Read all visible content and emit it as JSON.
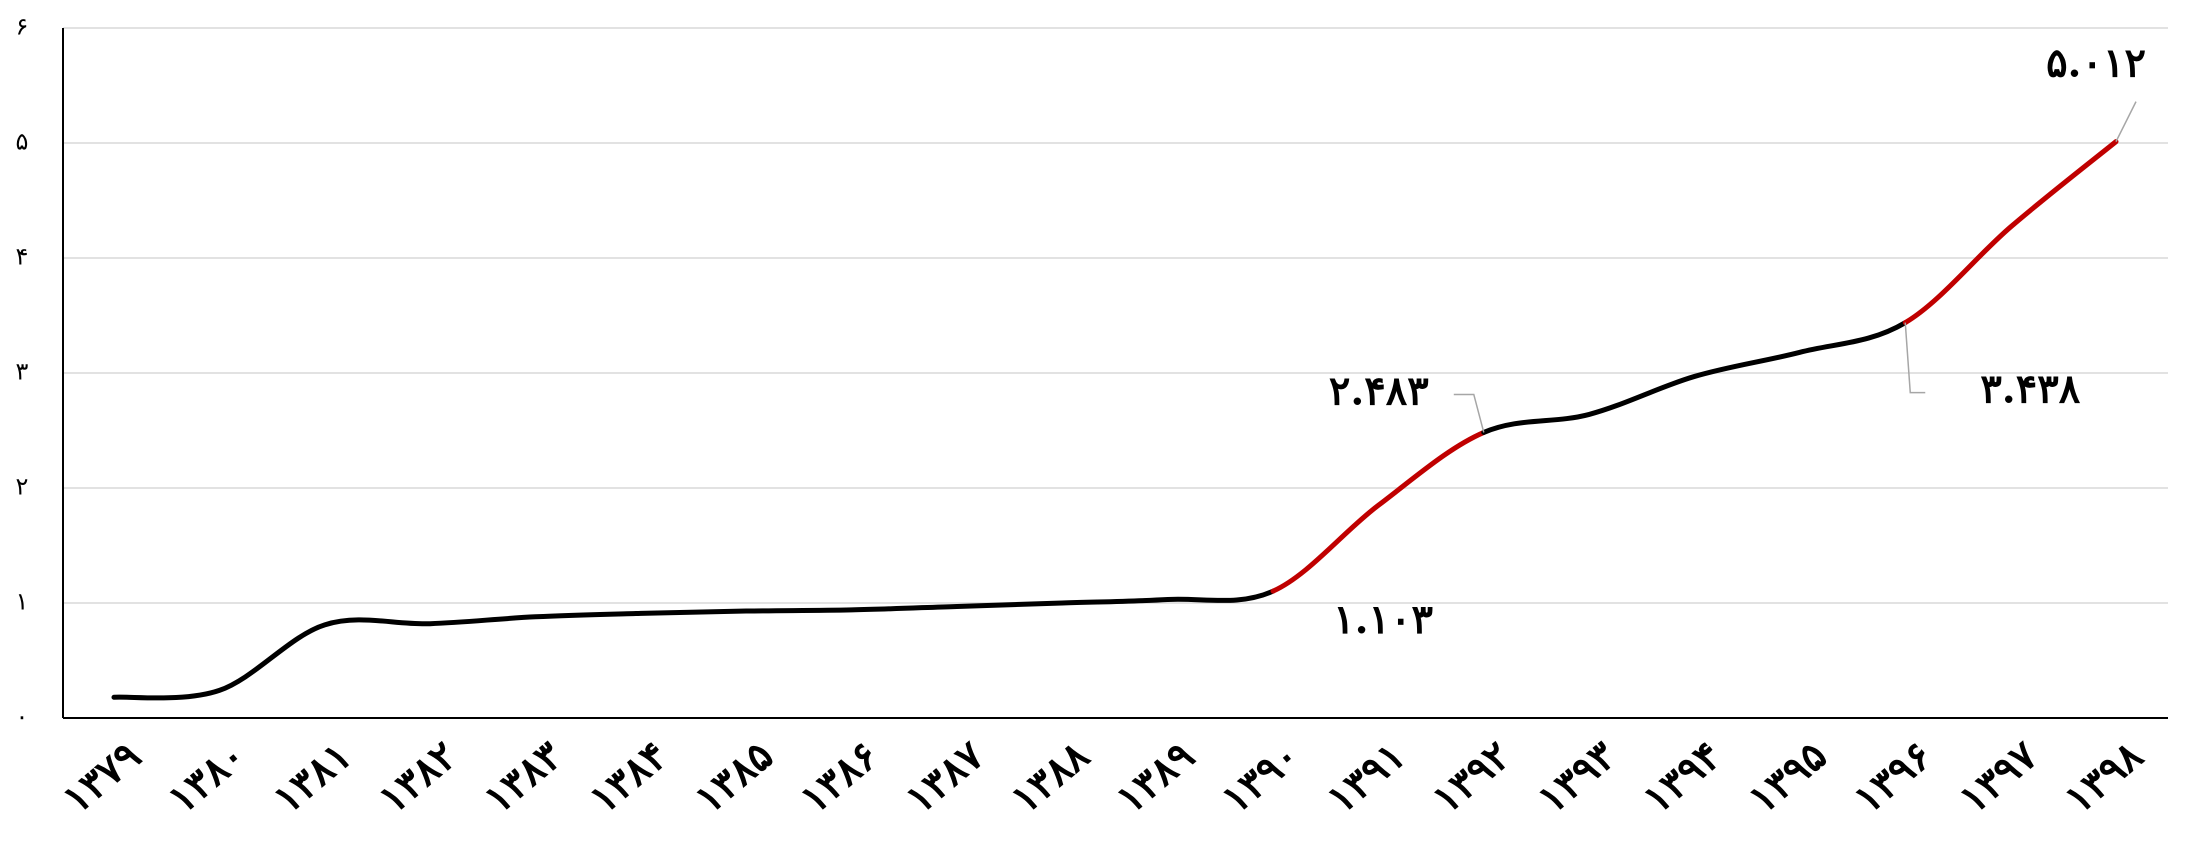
{
  "chart_data": {
    "type": "line",
    "categories": [
      "۱۳۷۹",
      "۱۳۸۰",
      "۱۳۸۱",
      "۱۳۸۲",
      "۱۳۸۳",
      "۱۳۸۴",
      "۱۳۸۵",
      "۱۳۸۶",
      "۱۳۸۷",
      "۱۳۸۸",
      "۱۳۸۹",
      "۱۳۹۰",
      "۱۳۹۱",
      "۱۳۹۲",
      "۱۳۹۳",
      "۱۳۹۴",
      "۱۳۹۵",
      "۱۳۹۶",
      "۱۳۹۷",
      "۱۳۹۸"
    ],
    "series": [
      {
        "color": "#000000",
        "values": [
          0.18,
          0.24,
          0.81,
          0.82,
          0.88,
          0.91,
          0.93,
          0.94,
          0.97,
          1.0,
          1.03,
          1.103,
          1.85,
          2.483,
          2.64,
          2.97,
          3.18,
          3.438,
          4.27,
          5.012
        ],
        "value_labels": [
          null,
          null,
          null,
          null,
          null,
          null,
          null,
          null,
          null,
          null,
          null,
          "۱.۱۰۳",
          null,
          "۲.۴۸۳",
          null,
          null,
          null,
          "۳.۴۳۸",
          null,
          "۵.۰۱۲"
        ],
        "segment_colors": [
          "#000000",
          "#000000",
          "#000000",
          "#000000",
          "#000000",
          "#000000",
          "#000000",
          "#000000",
          "#000000",
          "#000000",
          "#000000",
          "#c00000",
          "#c00000",
          "#000000",
          "#000000",
          "#000000",
          "#000000",
          "#c00000",
          "#c00000"
        ]
      }
    ],
    "ylim": [
      0,
      6
    ],
    "yticks": [
      {
        "value": 0,
        "label": "۰"
      },
      {
        "value": 1,
        "label": "۱"
      },
      {
        "value": 2,
        "label": "۲"
      },
      {
        "value": 3,
        "label": "۳"
      },
      {
        "value": 4,
        "label": "۴"
      },
      {
        "value": 5,
        "label": "۵"
      },
      {
        "value": 6,
        "label": "۶"
      }
    ],
    "grid": true
  }
}
